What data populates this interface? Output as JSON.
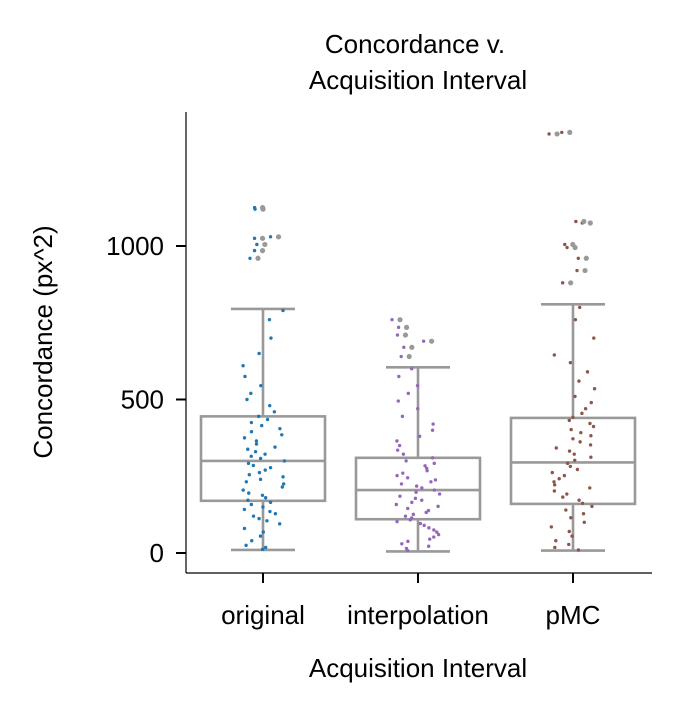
{
  "chart_data": {
    "type": "box",
    "title_lines": [
      "Concordance v.",
      "Acquisition Interval"
    ],
    "xlabel": "Acquisition Interval",
    "ylabel": "Concordance (px^2)",
    "ylim": [
      -65,
      1425
    ],
    "yticks": [
      0,
      500,
      1000
    ],
    "grid": false,
    "legend": "none",
    "box_color": "#999999",
    "outlier_color": "#999999",
    "categories": [
      "original",
      "interpolation",
      "pMC"
    ],
    "boxes": [
      {
        "category": "original",
        "color": "#1f77b4",
        "whisker_low": 10,
        "q1": 170,
        "median": 300,
        "q3": 445,
        "whisker_high": 795,
        "outliers": [
          960,
          985,
          1005,
          1025,
          1030,
          1120,
          1125
        ],
        "points": [
          12,
          18,
          25,
          40,
          55,
          68,
          80,
          95,
          105,
          112,
          120,
          128,
          135,
          142,
          150,
          158,
          165,
          172,
          180,
          188,
          195,
          205,
          215,
          225,
          232,
          240,
          248,
          255,
          262,
          270,
          278,
          285,
          292,
          300,
          308,
          315,
          322,
          330,
          338,
          345,
          355,
          365,
          375,
          385,
          395,
          405,
          415,
          425,
          435,
          445,
          460,
          480,
          500,
          520,
          545,
          575,
          610,
          650,
          700,
          760,
          790
        ]
      },
      {
        "category": "interpolation",
        "color": "#9467bd",
        "whisker_low": 5,
        "q1": 110,
        "median": 205,
        "q3": 310,
        "whisker_high": 605,
        "outliers": [
          640,
          670,
          690,
          710,
          735,
          760
        ],
        "points": [
          8,
          15,
          22,
          30,
          38,
          45,
          52,
          60,
          68,
          75,
          82,
          90,
          96,
          102,
          108,
          114,
          120,
          126,
          132,
          138,
          145,
          152,
          158,
          165,
          172,
          178,
          185,
          192,
          198,
          205,
          212,
          218,
          225,
          232,
          238,
          245,
          252,
          260,
          268,
          276,
          284,
          292,
          300,
          310,
          322,
          335,
          350,
          365,
          380,
          400,
          420,
          445,
          470,
          495,
          520,
          545,
          575,
          600
        ]
      },
      {
        "category": "pMC",
        "color": "#8c564b",
        "whisker_low": 8,
        "q1": 160,
        "median": 295,
        "q3": 440,
        "whisker_high": 810,
        "outliers": [
          880,
          920,
          960,
          995,
          1005,
          1075,
          1080,
          1365,
          1370
        ],
        "points": [
          10,
          18,
          28,
          40,
          55,
          70,
          85,
          100,
          115,
          128,
          140,
          152,
          162,
          172,
          182,
          192,
          202,
          212,
          222,
          232,
          242,
          252,
          262,
          272,
          282,
          292,
          302,
          312,
          322,
          332,
          342,
          352,
          362,
          372,
          382,
          392,
          402,
          412,
          422,
          432,
          442,
          455,
          470,
          490,
          510,
          535,
          560,
          590,
          620,
          645,
          700,
          760,
          800
        ]
      }
    ]
  }
}
